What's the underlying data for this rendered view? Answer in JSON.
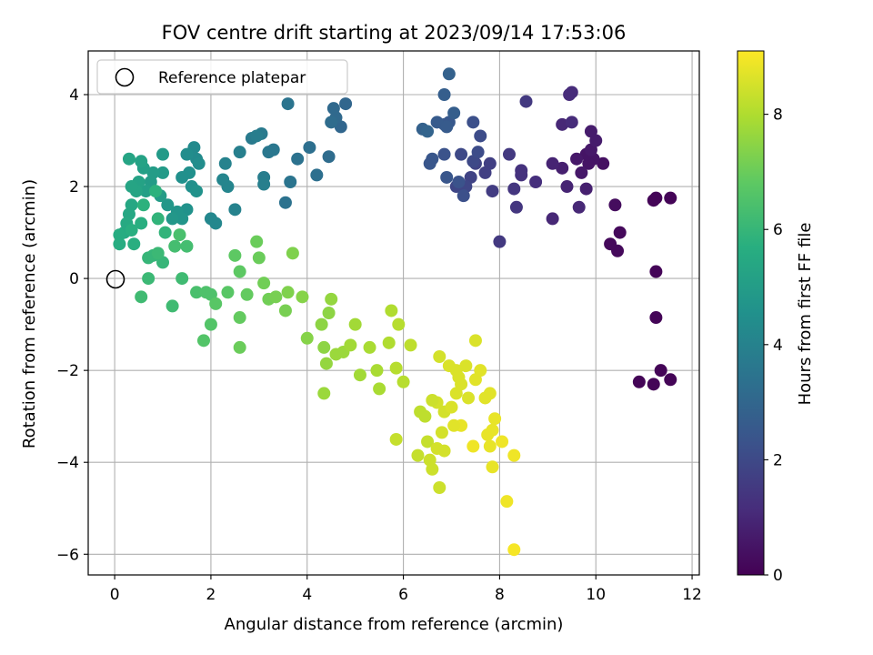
{
  "chart_data": {
    "type": "scatter",
    "title": "FOV centre drift starting at 2023/09/14 17:53:06",
    "xlabel": "Angular distance from reference (arcmin)",
    "ylabel": "Rotation from reference (arcmin)",
    "xlim": [
      -0.55,
      12.15
    ],
    "ylim": [
      -6.45,
      4.95
    ],
    "xticks": [
      "0",
      "2",
      "4",
      "6",
      "8",
      "10",
      "12"
    ],
    "yticks": [
      "4",
      "2",
      "0",
      "−2",
      "−4",
      "−6"
    ],
    "grid": true,
    "legend": {
      "position": "top-left",
      "entries": [
        "Reference platepar"
      ]
    },
    "reference_point": {
      "x": 0,
      "y": 0
    },
    "colorbar": {
      "label": "Hours from first FF file",
      "range": [
        0,
        9.1
      ],
      "ticks": [
        "0",
        "2",
        "4",
        "6",
        "8"
      ],
      "colormap": "viridis"
    },
    "points": [
      [
        11.55,
        -2.2,
        0.1
      ],
      [
        11.35,
        -2.0,
        0.1
      ],
      [
        11.2,
        -2.3,
        0.1
      ],
      [
        10.9,
        -2.25,
        0.1
      ],
      [
        11.25,
        -0.85,
        0.1
      ],
      [
        11.25,
        0.15,
        0.1
      ],
      [
        11.25,
        1.75,
        0.1
      ],
      [
        11.55,
        1.75,
        0.1
      ],
      [
        11.2,
        1.7,
        0.1
      ],
      [
        10.45,
        0.6,
        0.2
      ],
      [
        10.3,
        0.75,
        0.2
      ],
      [
        10.5,
        1.0,
        0.2
      ],
      [
        10.4,
        1.6,
        0.3
      ],
      [
        10.15,
        2.5,
        0.4
      ],
      [
        9.95,
        2.6,
        0.5
      ],
      [
        9.85,
        2.5,
        0.5
      ],
      [
        9.8,
        2.7,
        0.5
      ],
      [
        9.9,
        2.8,
        0.6
      ],
      [
        9.6,
        2.6,
        0.6
      ],
      [
        9.7,
        2.3,
        0.6
      ],
      [
        10.0,
        3.0,
        0.7
      ],
      [
        9.9,
        3.2,
        0.7
      ],
      [
        9.8,
        1.95,
        0.8
      ],
      [
        9.3,
        2.4,
        0.8
      ],
      [
        9.1,
        2.5,
        0.9
      ],
      [
        9.4,
        2.0,
        0.9
      ],
      [
        9.65,
        1.55,
        1.0
      ],
      [
        9.1,
        1.3,
        1.0
      ],
      [
        9.3,
        3.35,
        1.0
      ],
      [
        9.5,
        3.4,
        1.1
      ],
      [
        9.45,
        4.0,
        1.1
      ],
      [
        9.5,
        4.05,
        1.1
      ],
      [
        8.75,
        2.1,
        1.2
      ],
      [
        8.45,
        2.25,
        1.3
      ],
      [
        8.45,
        2.35,
        1.3
      ],
      [
        8.3,
        1.95,
        1.4
      ],
      [
        8.35,
        1.55,
        1.4
      ],
      [
        8.55,
        3.85,
        1.5
      ],
      [
        8.2,
        2.7,
        1.5
      ],
      [
        8.0,
        0.8,
        1.5
      ],
      [
        7.85,
        1.9,
        1.6
      ],
      [
        7.8,
        2.5,
        1.7
      ],
      [
        7.7,
        2.3,
        1.7
      ],
      [
        7.5,
        2.5,
        1.8
      ],
      [
        7.4,
        2.2,
        1.8
      ],
      [
        7.3,
        2.0,
        1.9
      ],
      [
        7.1,
        2.0,
        1.9
      ],
      [
        7.2,
        2.7,
        2.0
      ],
      [
        7.45,
        2.55,
        2.0
      ],
      [
        7.55,
        2.75,
        2.1
      ],
      [
        7.6,
        3.1,
        2.1
      ],
      [
        7.45,
        3.4,
        2.2
      ],
      [
        7.25,
        1.8,
        2.2
      ],
      [
        7.15,
        2.1,
        2.3
      ],
      [
        6.85,
        2.7,
        2.3
      ],
      [
        6.6,
        2.6,
        2.4
      ],
      [
        6.55,
        2.5,
        2.4
      ],
      [
        6.9,
        2.2,
        2.4
      ],
      [
        6.95,
        3.4,
        2.5
      ],
      [
        6.85,
        3.35,
        2.5
      ],
      [
        6.7,
        3.4,
        2.6
      ],
      [
        6.9,
        3.3,
        2.6
      ],
      [
        7.05,
        3.6,
        2.7
      ],
      [
        6.85,
        4.0,
        2.7
      ],
      [
        6.95,
        4.45,
        2.8
      ],
      [
        6.4,
        3.25,
        2.8
      ],
      [
        6.5,
        3.2,
        2.9
      ],
      [
        4.8,
        3.8,
        3.0
      ],
      [
        4.7,
        3.3,
        3.0
      ],
      [
        4.6,
        3.5,
        3.1
      ],
      [
        4.55,
        3.7,
        3.1
      ],
      [
        4.5,
        3.4,
        3.2
      ],
      [
        4.45,
        2.65,
        3.2
      ],
      [
        4.2,
        2.25,
        3.3
      ],
      [
        4.05,
        2.85,
        3.3
      ],
      [
        3.8,
        2.6,
        3.4
      ],
      [
        3.55,
        1.65,
        3.4
      ],
      [
        3.6,
        3.8,
        3.5
      ],
      [
        3.65,
        2.1,
        3.5
      ],
      [
        3.3,
        2.8,
        3.6
      ],
      [
        3.2,
        2.75,
        3.6
      ],
      [
        3.05,
        3.15,
        3.7
      ],
      [
        2.85,
        3.05,
        3.7
      ],
      [
        2.95,
        3.1,
        3.8
      ],
      [
        3.1,
        2.2,
        3.8
      ],
      [
        3.1,
        2.05,
        3.9
      ],
      [
        2.6,
        2.75,
        3.9
      ],
      [
        2.5,
        1.5,
        4.0
      ],
      [
        2.3,
        2.5,
        4.0
      ],
      [
        2.35,
        2.0,
        4.1
      ],
      [
        2.25,
        2.15,
        4.1
      ],
      [
        2.1,
        1.2,
        4.2
      ],
      [
        2.0,
        1.3,
        4.2
      ],
      [
        1.7,
        2.6,
        4.3
      ],
      [
        1.65,
        2.85,
        4.3
      ],
      [
        1.5,
        2.7,
        4.4
      ],
      [
        1.75,
        2.5,
        4.4
      ],
      [
        1.55,
        2.3,
        4.5
      ],
      [
        1.4,
        2.2,
        4.5
      ],
      [
        1.6,
        2.0,
        4.5
      ],
      [
        1.7,
        1.9,
        4.6
      ],
      [
        1.5,
        1.5,
        4.6
      ],
      [
        1.4,
        1.3,
        4.7
      ],
      [
        1.3,
        1.45,
        4.7
      ],
      [
        1.2,
        1.3,
        4.8
      ],
      [
        1.1,
        1.6,
        4.8
      ],
      [
        1.0,
        2.7,
        4.9
      ],
      [
        1.0,
        2.3,
        4.9
      ],
      [
        0.95,
        1.8,
        5.0
      ],
      [
        0.8,
        2.3,
        5.0
      ],
      [
        0.75,
        2.1,
        5.0
      ],
      [
        0.6,
        2.4,
        5.1
      ],
      [
        0.65,
        1.9,
        5.1
      ],
      [
        0.5,
        2.1,
        5.2
      ],
      [
        0.55,
        2.55,
        5.2
      ],
      [
        0.45,
        1.9,
        5.3
      ],
      [
        0.35,
        2.0,
        5.3
      ],
      [
        0.3,
        2.6,
        5.3
      ],
      [
        0.35,
        1.6,
        5.4
      ],
      [
        0.3,
        1.4,
        5.4
      ],
      [
        0.25,
        1.2,
        5.5
      ],
      [
        0.2,
        1.0,
        5.5
      ],
      [
        0.1,
        0.95,
        5.6
      ],
      [
        0.1,
        0.75,
        5.6
      ],
      [
        0.4,
        0.75,
        5.7
      ],
      [
        0.35,
        1.05,
        5.7
      ],
      [
        0.55,
        1.2,
        5.7
      ],
      [
        0.6,
        1.6,
        5.8
      ],
      [
        0.85,
        1.9,
        5.8
      ],
      [
        0.9,
        1.3,
        5.9
      ],
      [
        1.05,
        1.0,
        5.9
      ],
      [
        1.0,
        0.35,
        6.0
      ],
      [
        0.7,
        0.45,
        6.0
      ],
      [
        0.8,
        0.5,
        6.0
      ],
      [
        0.9,
        0.55,
        6.1
      ],
      [
        0.7,
        0.0,
        6.1
      ],
      [
        0.55,
        -0.4,
        6.2
      ],
      [
        1.2,
        -0.6,
        6.2
      ],
      [
        1.4,
        0.0,
        6.2
      ],
      [
        1.25,
        0.7,
        6.3
      ],
      [
        1.5,
        0.7,
        6.3
      ],
      [
        1.35,
        0.95,
        6.4
      ],
      [
        1.7,
        -0.3,
        6.4
      ],
      [
        1.9,
        -0.3,
        6.5
      ],
      [
        2.0,
        -0.35,
        6.5
      ],
      [
        1.85,
        -1.35,
        6.6
      ],
      [
        2.0,
        -1.0,
        6.6
      ],
      [
        2.1,
        -0.55,
        6.7
      ],
      [
        2.35,
        -0.3,
        6.7
      ],
      [
        2.5,
        0.5,
        6.8
      ],
      [
        2.6,
        0.15,
        6.8
      ],
      [
        2.75,
        -0.35,
        6.9
      ],
      [
        2.6,
        -0.85,
        6.9
      ],
      [
        2.6,
        -1.5,
        7.0
      ],
      [
        2.95,
        0.8,
        7.0
      ],
      [
        3.0,
        0.45,
        7.0
      ],
      [
        3.1,
        -0.1,
        7.1
      ],
      [
        3.2,
        -0.45,
        7.1
      ],
      [
        3.35,
        -0.4,
        7.2
      ],
      [
        3.55,
        -0.7,
        7.2
      ],
      [
        3.6,
        -0.3,
        7.3
      ],
      [
        3.7,
        0.55,
        7.3
      ],
      [
        3.9,
        -0.4,
        7.4
      ],
      [
        4.0,
        -1.3,
        7.4
      ],
      [
        4.3,
        -1.0,
        7.5
      ],
      [
        4.35,
        -1.5,
        7.5
      ],
      [
        4.45,
        -0.75,
        7.5
      ],
      [
        4.5,
        -0.45,
        7.6
      ],
      [
        4.4,
        -1.85,
        7.6
      ],
      [
        4.35,
        -2.5,
        7.7
      ],
      [
        4.6,
        -1.65,
        7.7
      ],
      [
        4.75,
        -1.6,
        7.7
      ],
      [
        4.9,
        -1.45,
        7.8
      ],
      [
        5.0,
        -1.0,
        7.8
      ],
      [
        5.1,
        -2.1,
        7.8
      ],
      [
        5.3,
        -1.5,
        7.9
      ],
      [
        5.45,
        -2.0,
        7.9
      ],
      [
        5.5,
        -2.4,
        7.9
      ],
      [
        5.7,
        -1.4,
        8.0
      ],
      [
        5.75,
        -0.7,
        8.0
      ],
      [
        5.85,
        -1.95,
        8.1
      ],
      [
        5.9,
        -1.0,
        8.1
      ],
      [
        6.0,
        -2.25,
        8.1
      ],
      [
        6.15,
        -1.45,
        8.2
      ],
      [
        6.35,
        -2.9,
        8.2
      ],
      [
        6.45,
        -3.0,
        8.2
      ],
      [
        6.3,
        -3.85,
        8.3
      ],
      [
        5.85,
        -3.5,
        8.3
      ],
      [
        6.5,
        -3.55,
        8.3
      ],
      [
        6.55,
        -3.95,
        8.4
      ],
      [
        6.6,
        -4.15,
        8.4
      ],
      [
        6.75,
        -4.55,
        8.4
      ],
      [
        6.85,
        -3.75,
        8.5
      ],
      [
        6.8,
        -3.35,
        8.5
      ],
      [
        6.7,
        -3.7,
        8.5
      ],
      [
        6.85,
        -2.9,
        8.5
      ],
      [
        7.0,
        -2.8,
        8.6
      ],
      [
        7.1,
        -2.5,
        8.6
      ],
      [
        7.2,
        -2.3,
        8.6
      ],
      [
        7.35,
        -2.6,
        8.6
      ],
      [
        7.5,
        -2.2,
        8.7
      ],
      [
        7.6,
        -2.0,
        8.7
      ],
      [
        7.7,
        -2.6,
        8.7
      ],
      [
        7.8,
        -2.5,
        8.7
      ],
      [
        7.9,
        -3.05,
        8.8
      ],
      [
        7.85,
        -3.3,
        8.8
      ],
      [
        7.75,
        -3.4,
        8.8
      ],
      [
        7.8,
        -3.65,
        8.8
      ],
      [
        7.85,
        -4.1,
        8.8
      ],
      [
        8.05,
        -3.55,
        8.9
      ],
      [
        8.3,
        -3.85,
        8.9
      ],
      [
        8.15,
        -4.85,
        8.9
      ],
      [
        8.3,
        -5.9,
        9.0
      ],
      [
        7.45,
        -3.65,
        8.9
      ],
      [
        7.2,
        -3.2,
        8.8
      ],
      [
        7.05,
        -3.2,
        8.7
      ],
      [
        7.1,
        -2.0,
        8.6
      ],
      [
        6.95,
        -1.9,
        8.6
      ],
      [
        6.7,
        -2.7,
        8.5
      ],
      [
        6.6,
        -2.65,
        8.4
      ],
      [
        7.5,
        -1.35,
        8.6
      ],
      [
        6.75,
        -1.7,
        8.5
      ],
      [
        7.3,
        -1.9,
        8.6
      ],
      [
        7.15,
        -2.15,
        8.6
      ]
    ]
  }
}
